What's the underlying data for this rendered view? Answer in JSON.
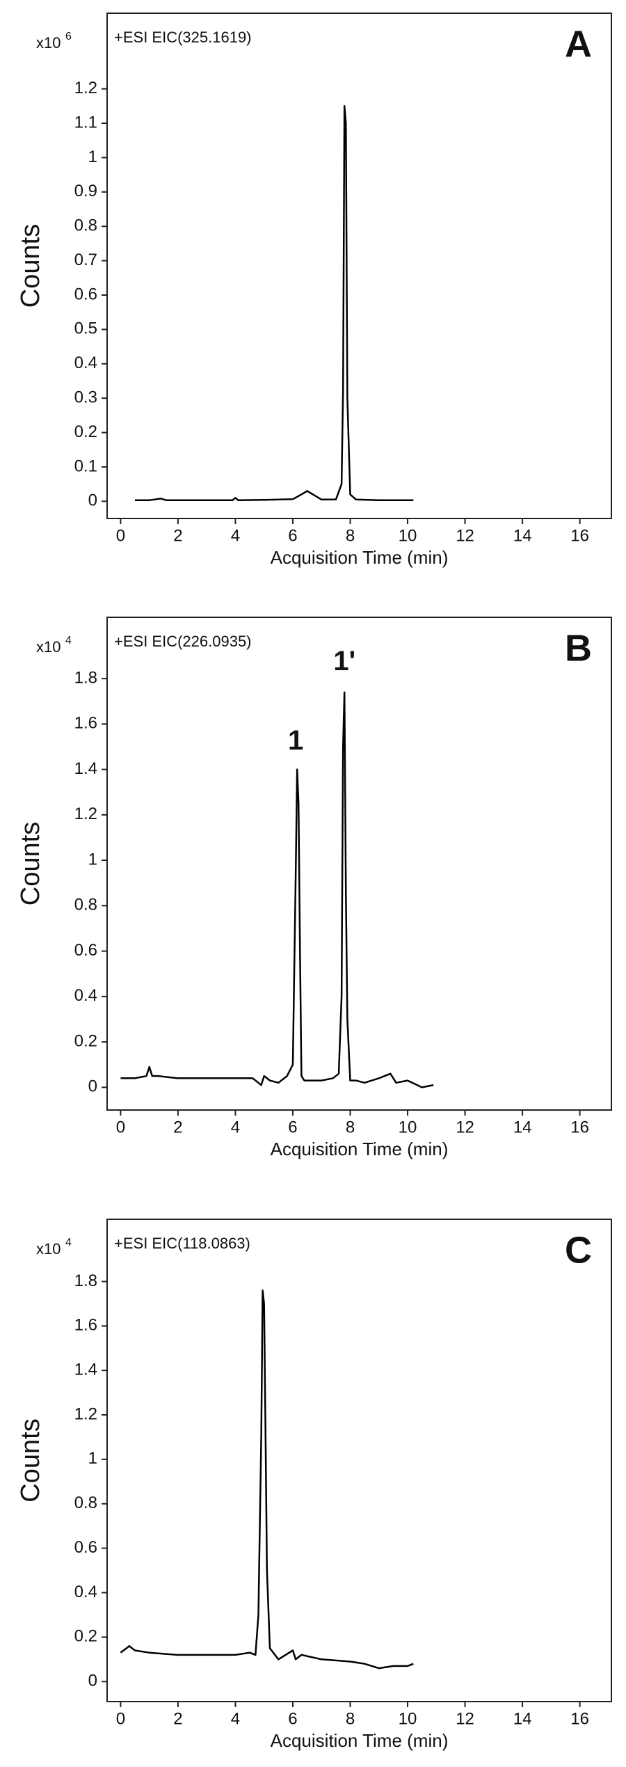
{
  "chart_data": [
    {
      "type": "line",
      "panel_label": "A",
      "title": "+ESI EIC(325.1619)",
      "y_scale_label": "x10",
      "y_scale_exponent": "6",
      "ylabel": "Counts",
      "xlabel": "Acquisition Time (min)",
      "color": "#000000",
      "xlim": [
        -0.47,
        17.1
      ],
      "ylim": [
        -0.05,
        1.42
      ],
      "xticks": [
        0,
        2,
        4,
        6,
        8,
        10,
        12,
        14,
        16
      ],
      "yticks": [
        0,
        0.1,
        0.2,
        0.3,
        0.4,
        0.5,
        0.6,
        0.7,
        0.8,
        0.9,
        1,
        1.1,
        1.2
      ],
      "x": [
        0.5,
        1,
        1.4,
        1.6,
        2,
        3,
        3.9,
        4,
        4.1,
        5,
        6,
        6.3,
        6.5,
        6.7,
        7,
        7.5,
        7.7,
        7.75,
        7.8,
        7.85,
        7.9,
        8,
        8.2,
        9,
        10.2
      ],
      "values": [
        0.003,
        0.003,
        0.008,
        0.003,
        0.003,
        0.003,
        0.003,
        0.01,
        0.003,
        0.004,
        0.006,
        0.02,
        0.03,
        0.02,
        0.005,
        0.005,
        0.05,
        0.32,
        1.15,
        1.1,
        0.3,
        0.02,
        0.005,
        0.003,
        0.003
      ]
    },
    {
      "type": "line",
      "panel_label": "B",
      "title": "+ESI EIC(226.0935)",
      "y_scale_label": "x10",
      "y_scale_exponent": "4",
      "ylabel": "Counts",
      "xlabel": "Acquisition Time (min)",
      "color": "#000000",
      "xlim": [
        -0.47,
        17.1
      ],
      "ylim": [
        -0.1,
        2.07
      ],
      "xticks": [
        0,
        2,
        4,
        6,
        8,
        10,
        12,
        14,
        16
      ],
      "yticks": [
        0,
        0.2,
        0.4,
        0.6,
        0.8,
        1,
        1.2,
        1.4,
        1.6,
        1.8
      ],
      "x": [
        0,
        0.5,
        0.9,
        1,
        1.1,
        1.3,
        2,
        3,
        4,
        4.6,
        4.9,
        5.0,
        5.2,
        5.5,
        5.8,
        6.0,
        6.1,
        6.15,
        6.2,
        6.25,
        6.3,
        6.4,
        6.6,
        7,
        7.4,
        7.6,
        7.7,
        7.75,
        7.8,
        7.85,
        7.9,
        8.0,
        8.2,
        8.5,
        9,
        9.4,
        9.6,
        10,
        10.5,
        10.9
      ],
      "values": [
        0.04,
        0.04,
        0.05,
        0.09,
        0.05,
        0.05,
        0.04,
        0.04,
        0.04,
        0.04,
        0.01,
        0.05,
        0.03,
        0.02,
        0.05,
        0.1,
        0.93,
        1.4,
        1.25,
        0.6,
        0.05,
        0.03,
        0.03,
        0.03,
        0.04,
        0.06,
        0.4,
        1.5,
        1.74,
        0.85,
        0.3,
        0.03,
        0.03,
        0.02,
        0.04,
        0.06,
        0.02,
        0.03,
        0.0,
        0.01
      ],
      "annotations": [
        {
          "text": "1",
          "x": 6.1,
          "y": 1.52
        },
        {
          "text": "1'",
          "x": 7.8,
          "y": 1.87
        }
      ]
    },
    {
      "type": "line",
      "panel_label": "C",
      "title": "+ESI EIC(118.0863)",
      "y_scale_label": "x10",
      "y_scale_exponent": "4",
      "ylabel": "Counts",
      "xlabel": "Acquisition Time (min)",
      "color": "#000000",
      "xlim": [
        -0.47,
        17.1
      ],
      "ylim": [
        -0.09,
        2.08
      ],
      "xticks": [
        0,
        2,
        4,
        6,
        8,
        10,
        12,
        14,
        16
      ],
      "yticks": [
        0,
        0.2,
        0.4,
        0.6,
        0.8,
        1,
        1.2,
        1.4,
        1.6,
        1.8
      ],
      "x": [
        0,
        0.3,
        0.5,
        1,
        2,
        3,
        4,
        4.5,
        4.7,
        4.8,
        4.9,
        4.95,
        5.0,
        5.05,
        5.1,
        5.2,
        5.5,
        6,
        6.1,
        6.3,
        7,
        8,
        8.5,
        9,
        9.5,
        10,
        10.2
      ],
      "values": [
        0.13,
        0.16,
        0.14,
        0.13,
        0.12,
        0.12,
        0.12,
        0.13,
        0.12,
        0.3,
        1.1,
        1.76,
        1.7,
        1.1,
        0.5,
        0.15,
        0.1,
        0.14,
        0.1,
        0.12,
        0.1,
        0.09,
        0.08,
        0.06,
        0.07,
        0.07,
        0.08
      ]
    }
  ]
}
